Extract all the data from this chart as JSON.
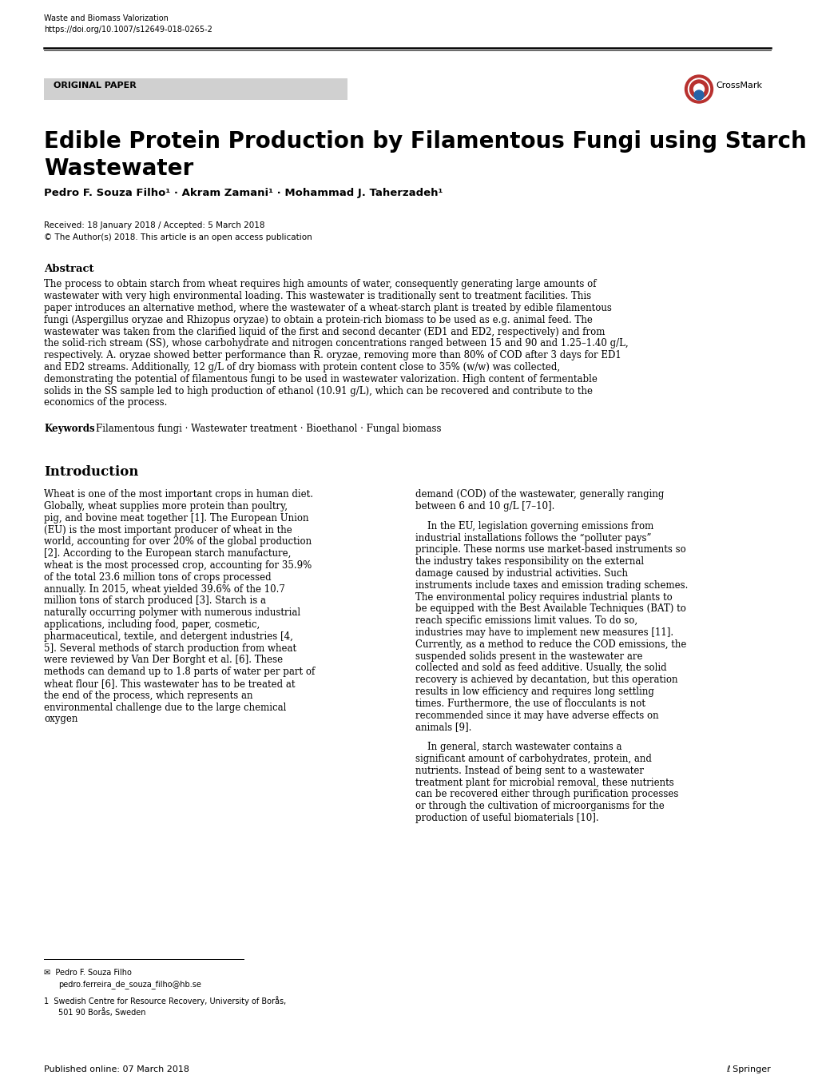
{
  "journal_name": "Waste and Biomass Valorization",
  "doi": "https://doi.org/10.1007/s12649-018-0265-2",
  "section_label": "ORIGINAL PAPER",
  "title_line1": "Edible Protein Production by Filamentous Fungi using Starch Plant",
  "title_line2": "Wastewater",
  "authors": "Pedro F. Souza Filho¹ · Akram Zamani¹ · Mohammad J. Taherzadeh¹",
  "received": "Received: 18 January 2018 / Accepted: 5 March 2018",
  "open_access": "© The Author(s) 2018. This article is an open access publication",
  "abstract_title": "Abstract",
  "abstract_text": "The process to obtain starch from wheat requires high amounts of water, consequently generating large amounts of wastewater with very high environmental loading. This wastewater is traditionally sent to treatment facilities. This paper introduces an alternative method, where the wastewater of a wheat-starch plant is treated by edible filamentous fungi (Aspergillus oryzae and Rhizopus oryzae) to obtain a protein-rich biomass to be used as e.g. animal feed. The wastewater was taken from the clarified liquid of the first and second decanter (ED1 and ED2, respectively) and from the solid-rich stream (SS), whose carbohydrate and nitrogen concentrations ranged between 15 and 90 and 1.25–1.40 g/L, respectively. A. oryzae showed better performance than R. oryzae, removing more than 80% of COD after 3 days for ED1 and ED2 streams. Additionally, 12 g/L of dry biomass with protein content close to 35% (w/w) was collected, demonstrating the potential of filamentous fungi to be used in wastewater valorization. High content of fermentable solids in the SS sample led to high production of ethanol (10.91 g/L), which can be recovered and contribute to the economics of the process.",
  "keywords_label": "Keywords",
  "keywords_text": "Filamentous fungi · Wastewater treatment · Bioethanol · Fungal biomass",
  "intro_title": "Introduction",
  "intro_col1_paras": [
    "Wheat is one of the most important crops in human diet. Globally, wheat supplies more protein than poultry, pig, and bovine meat together [1]. The European Union (EU) is the most important producer of wheat in the world, accounting for over 20% of the global production [2]. According to the European starch manufacture, wheat is the most processed crop, accounting for 35.9% of the total 23.6 million tons of crops processed annually. In 2015, wheat yielded 39.6% of the 10.7 million tons of starch produced [3]. Starch is a naturally occurring polymer with numerous industrial applications, including food, paper, cosmetic, pharmaceutical, textile, and detergent industries [4, 5]. Several methods of starch production from wheat were reviewed by Van Der Borght et al. [6]. These methods can demand up to 1.8 parts of water per part of wheat flour [6]. This wastewater has to be treated at the end of the process, which represents an environmental challenge due to the large chemical oxygen"
  ],
  "intro_col2_paras": [
    "demand (COD) of the wastewater, generally ranging between 6 and 10 g/L [7–10].",
    "In the EU, legislation governing emissions from industrial installations follows the “polluter pays” principle. These norms use market-based instruments so the industry takes responsibility on the external damage caused by industrial activities. Such instruments include taxes and emission trading schemes. The environmental policy requires industrial plants to be equipped with the Best Available Techniques (BAT) to reach specific emissions limit values. To do so, industries may have to implement new measures [11]. Currently, as a method to reduce the COD emissions, the suspended solids present in the wastewater are collected and sold as feed additive. Usually, the solid recovery is achieved by decantation, but this operation results in low efficiency and requires long settling times. Furthermore, the use of flocculants is not recommended since it may have adverse effects on animals [9].",
    "In general, starch wastewater contains a significant amount of carbohydrates, protein, and nutrients. Instead of being sent to a wastewater treatment plant for microbial removal, these nutrients can be recovered either through purification processes or through the cultivation of microorganisms for the production of useful biomaterials [10]."
  ],
  "footnote_name": "Pedro F. Souza Filho",
  "footnote_email": "pedro.ferreira_de_souza_filho@hb.se",
  "footnote_affil_num": "1",
  "footnote_affil_line1": "Swedish Centre for Resource Recovery, University of Borås,",
  "footnote_affil_line2": "501 90 Borås, Sweden",
  "published": "Published online: 07 March 2018",
  "springer_text": "ℓ Springer",
  "bg_color": "#ffffff",
  "text_color": "#000000",
  "section_bg": "#d0d0d0",
  "link_color": "#0000cc"
}
